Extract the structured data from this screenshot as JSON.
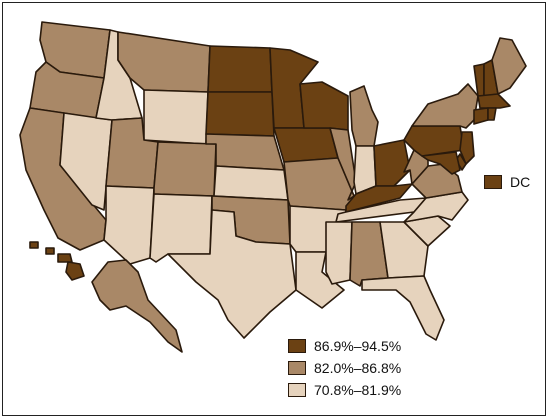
{
  "map": {
    "colors": {
      "high": "#6b4113",
      "mid": "#a98867",
      "low": "#e6d3bd"
    },
    "dc_label": "DC",
    "legend": [
      {
        "label": "86.9%–94.5%",
        "level": "high"
      },
      {
        "label": "82.0%–86.8%",
        "level": "mid"
      },
      {
        "label": "70.8%–81.9%",
        "level": "low"
      }
    ],
    "states": {
      "WA": "mid",
      "OR": "mid",
      "CA": "mid",
      "NV": "low",
      "ID": "low",
      "MT": "mid",
      "WY": "low",
      "UT": "mid",
      "AZ": "low",
      "CO": "mid",
      "NM": "low",
      "ND": "high",
      "SD": "high",
      "NE": "mid",
      "KS": "low",
      "OK": "mid",
      "TX": "low",
      "MN": "high",
      "IA": "high",
      "MO": "mid",
      "AR": "low",
      "LA": "low",
      "WI": "high",
      "IL": "mid",
      "MI": "mid",
      "IN": "low",
      "OH": "high",
      "KY": "high",
      "TN": "low",
      "MS": "low",
      "AL": "mid",
      "GA": "low",
      "FL": "low",
      "SC": "low",
      "NC": "low",
      "VA": "mid",
      "WV": "mid",
      "PA": "high",
      "NY": "mid",
      "VT": "high",
      "NH": "high",
      "ME": "mid",
      "MA": "high",
      "RI": "high",
      "CT": "high",
      "NJ": "high",
      "DE": "high",
      "MD": "high",
      "AK": "mid",
      "HI": "high",
      "DC": "high"
    }
  }
}
